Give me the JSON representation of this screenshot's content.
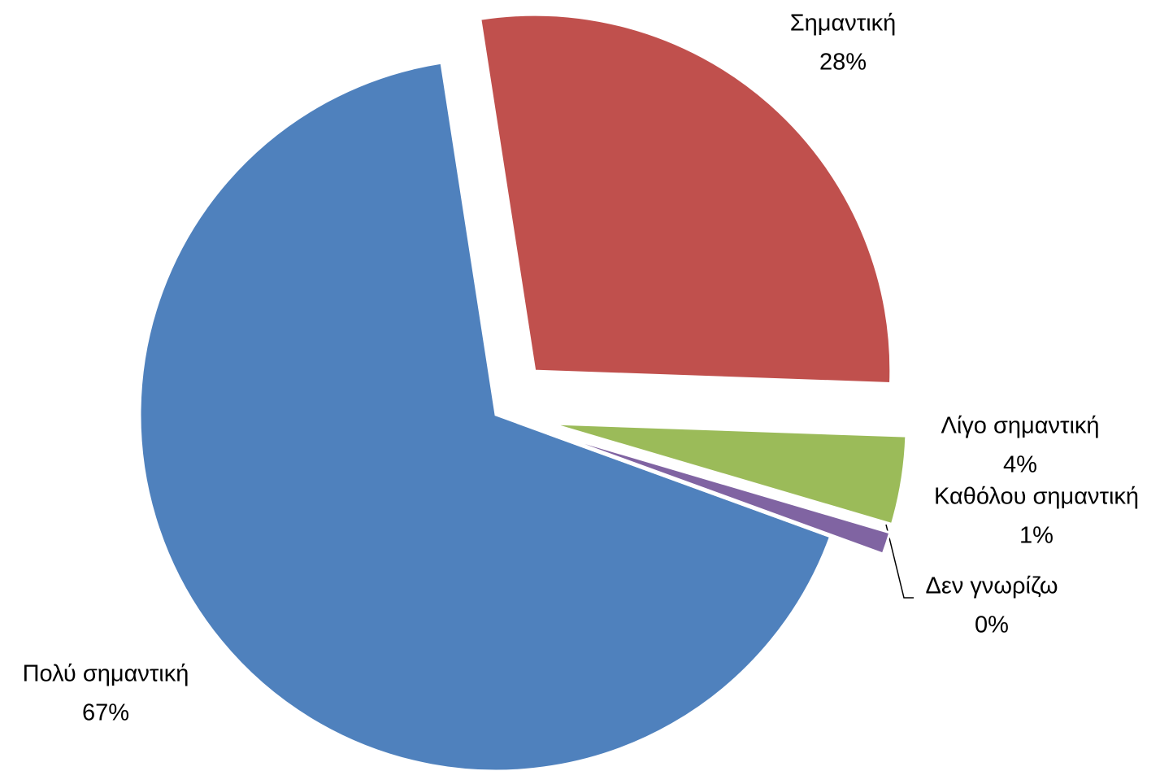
{
  "chart_data": {
    "type": "pie",
    "categories": [
      "Πολύ σημαντική",
      "Σημαντική",
      "Λίγο σημαντική",
      "Καθόλου σημαντική",
      "Δεν γνωρίζω"
    ],
    "values": [
      67,
      28,
      4,
      1,
      0
    ],
    "value_labels": [
      "67%",
      "28%",
      "4%",
      "1%",
      "0%"
    ],
    "colors": [
      "#4f81bd",
      "#c0504d",
      "#9bbb59",
      "#8064a2",
      "#4bacc6"
    ]
  }
}
